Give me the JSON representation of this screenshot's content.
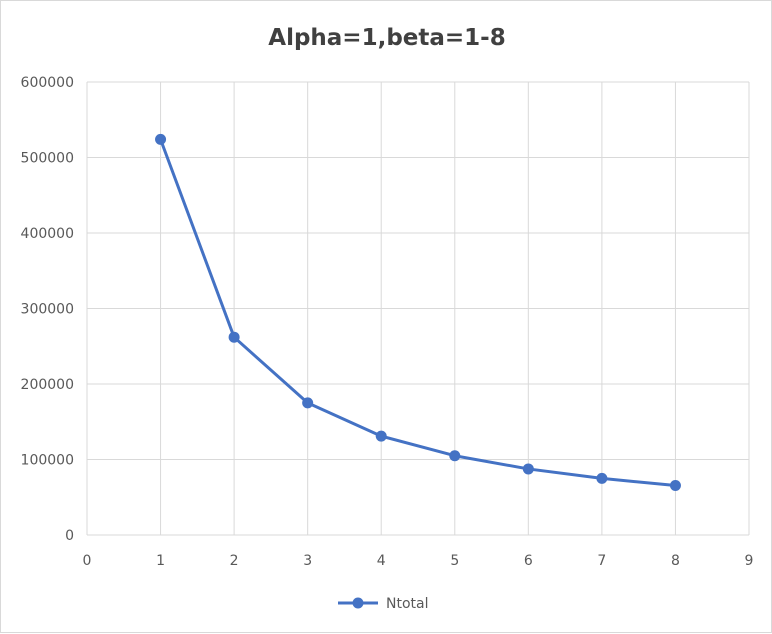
{
  "chart_data": {
    "type": "line",
    "title": "Alpha=1,beta=1-8",
    "xlabel": "",
    "ylabel": "",
    "xlim": [
      0,
      9
    ],
    "ylim": [
      0,
      600000
    ],
    "x_ticks": [
      "0",
      "1",
      "2",
      "3",
      "4",
      "5",
      "6",
      "7",
      "8",
      "9"
    ],
    "y_ticks": [
      "0",
      "100000",
      "200000",
      "300000",
      "400000",
      "500000",
      "600000"
    ],
    "grid": true,
    "legend_position": "bottom",
    "series": [
      {
        "name": "Ntotal",
        "color": "#4472c4",
        "x": [
          1,
          2,
          3,
          4,
          5,
          6,
          7,
          8
        ],
        "y": [
          524000,
          262000,
          175000,
          131000,
          105000,
          87500,
          75000,
          65500
        ]
      }
    ]
  }
}
